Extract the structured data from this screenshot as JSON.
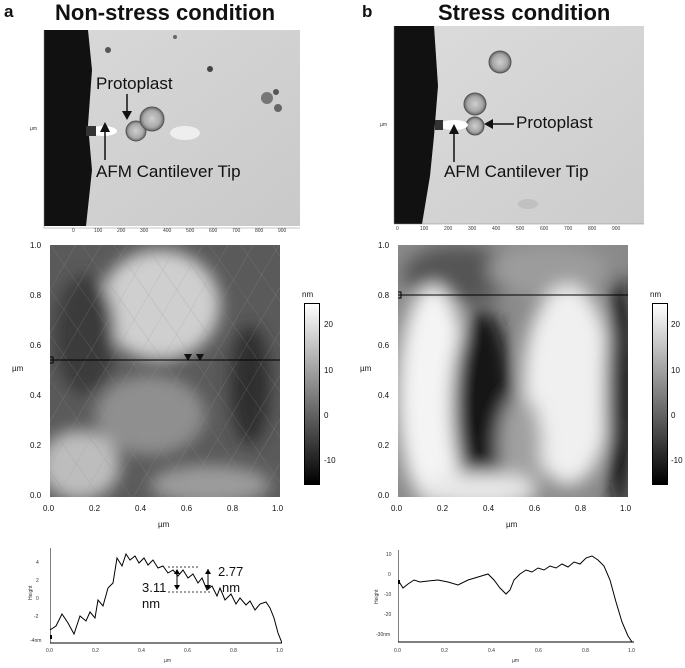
{
  "panel_a": {
    "letter": "a",
    "title": "Non-stress condition",
    "labels": {
      "protoplast": "Protoplast",
      "tip": "AFM Cantilever Tip"
    },
    "image_x_ticks": [
      "0",
      "100",
      "200",
      "300",
      "400",
      "500",
      "600",
      "700",
      "800",
      "900"
    ],
    "image_y_unit": "µm",
    "afm": {
      "y_ticks": [
        "1.0",
        "0.8",
        "0.6",
        "0.4",
        "0.2",
        "0.0"
      ],
      "x_ticks": [
        "0.0",
        "0.2",
        "0.4",
        "0.6",
        "0.8",
        "1.0"
      ],
      "x_label": "µm",
      "y_label": "µm",
      "scale_unit": "nm",
      "scale_ticks": [
        "20",
        "10",
        "0",
        "-10"
      ]
    },
    "profile": {
      "y_label": "Height",
      "y_ticks": [
        "4",
        "2",
        "0",
        "-2",
        "-4nm"
      ],
      "x_ticks": [
        "0.0",
        "0.2",
        "0.4",
        "0.6",
        "0.8",
        "1.0"
      ],
      "x_label": "µm",
      "ann_left": [
        "3.11",
        "nm"
      ],
      "ann_right": [
        "2.77",
        "nm"
      ]
    }
  },
  "panel_b": {
    "letter": "b",
    "title": "Stress condition",
    "labels": {
      "protoplast": "Protoplast",
      "tip": "AFM Cantilever Tip"
    },
    "image_x_ticks": [
      "0",
      "100",
      "200",
      "300",
      "400",
      "500",
      "600",
      "700",
      "800",
      "900"
    ],
    "image_y_unit": "µm",
    "afm": {
      "y_ticks": [
        "1.0",
        "0.8",
        "0.6",
        "0.4",
        "0.2",
        "0.0"
      ],
      "x_ticks": [
        "0.0",
        "0.2",
        "0.4",
        "0.6",
        "0.8",
        "1.0"
      ],
      "x_label": "µm",
      "y_label": "µm",
      "scale_unit": "nm",
      "scale_ticks": [
        "20",
        "10",
        "0",
        "-10"
      ]
    },
    "profile": {
      "y_label": "Height",
      "y_ticks": [
        "10",
        "0",
        "-10",
        "-20",
        "-30nm"
      ],
      "x_ticks": [
        "0.0",
        "0.2",
        "0.4",
        "0.6",
        "0.8",
        "1.0"
      ],
      "x_label": "µm"
    }
  }
}
